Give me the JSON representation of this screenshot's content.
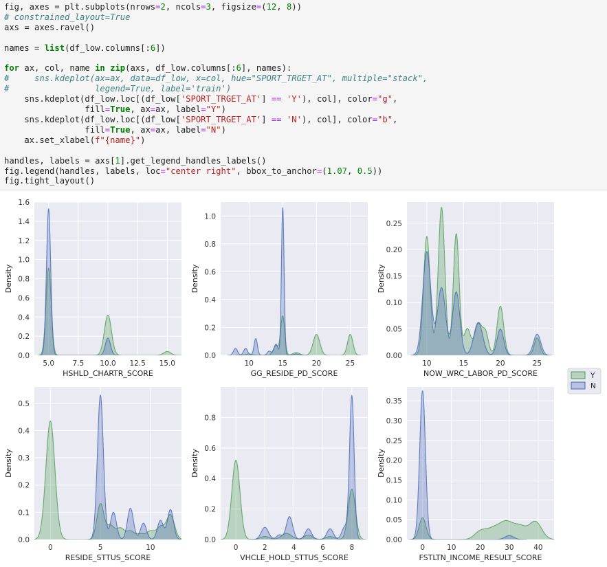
{
  "code_cell": {
    "lines": [
      [
        [
          "plain",
          "fig, axes = plt.subplots(nrows"
        ],
        [
          "op",
          "="
        ],
        [
          "num",
          "2"
        ],
        [
          "plain",
          ", ncols"
        ],
        [
          "op",
          "="
        ],
        [
          "num",
          "3"
        ],
        [
          "plain",
          ", figsize"
        ],
        [
          "op",
          "="
        ],
        [
          "plain",
          "("
        ],
        [
          "num",
          "12"
        ],
        [
          "plain",
          ", "
        ],
        [
          "num",
          "8"
        ],
        [
          "plain",
          "))"
        ]
      ],
      [
        [
          "cmt",
          "# constrained_layout=True"
        ]
      ],
      [
        [
          "plain",
          "axs = axes.ravel()"
        ]
      ],
      [
        [
          "plain",
          ""
        ]
      ],
      [
        [
          "plain",
          "names = "
        ],
        [
          "kw",
          "list"
        ],
        [
          "plain",
          "(df_low.columns[:"
        ],
        [
          "num",
          "6"
        ],
        [
          "plain",
          "])"
        ]
      ],
      [
        [
          "plain",
          ""
        ]
      ],
      [
        [
          "kw",
          "for"
        ],
        [
          "plain",
          " ax, col, name "
        ],
        [
          "kw",
          "in"
        ],
        [
          "plain",
          " "
        ],
        [
          "kw",
          "zip"
        ],
        [
          "plain",
          "(axs, df_low.columns[:"
        ],
        [
          "num",
          "6"
        ],
        [
          "plain",
          "], names):"
        ]
      ],
      [
        [
          "cmt",
          "#     sns.kdeplot(ax=ax, data=df_low, x=col, hue=\"SPORT_TRGET_AT\", multiple=\"stack\","
        ]
      ],
      [
        [
          "cmt",
          "#                 legend=True, label='train')"
        ]
      ],
      [
        [
          "plain",
          "    sns.kdeplot(df_low.loc[(df_low["
        ],
        [
          "str",
          "'SPORT_TRGET_AT'"
        ],
        [
          "plain",
          "] "
        ],
        [
          "op",
          "=="
        ],
        [
          "plain",
          " "
        ],
        [
          "str",
          "'Y'"
        ],
        [
          "plain",
          "), col], color"
        ],
        [
          "op",
          "="
        ],
        [
          "str",
          "\"g\""
        ],
        [
          "plain",
          ","
        ]
      ],
      [
        [
          "plain",
          "                fill"
        ],
        [
          "op",
          "="
        ],
        [
          "kw",
          "True"
        ],
        [
          "plain",
          ", ax"
        ],
        [
          "op",
          "="
        ],
        [
          "plain",
          "ax, label"
        ],
        [
          "op",
          "="
        ],
        [
          "str",
          "\"Y\""
        ],
        [
          "plain",
          ")"
        ]
      ],
      [
        [
          "plain",
          "    sns.kdeplot(df_low.loc[(df_low["
        ],
        [
          "str",
          "'SPORT_TRGET_AT'"
        ],
        [
          "plain",
          "] "
        ],
        [
          "op",
          "=="
        ],
        [
          "plain",
          " "
        ],
        [
          "str",
          "'N'"
        ],
        [
          "plain",
          "), col], color"
        ],
        [
          "op",
          "="
        ],
        [
          "str",
          "\"b\""
        ],
        [
          "plain",
          ","
        ]
      ],
      [
        [
          "plain",
          "                fill"
        ],
        [
          "op",
          "="
        ],
        [
          "kw",
          "True"
        ],
        [
          "plain",
          ", ax"
        ],
        [
          "op",
          "="
        ],
        [
          "plain",
          "ax, label"
        ],
        [
          "op",
          "="
        ],
        [
          "str",
          "\"N\""
        ],
        [
          "plain",
          ")"
        ]
      ],
      [
        [
          "plain",
          "    ax.set_xlabel("
        ],
        [
          "str",
          "f\"{name}\""
        ],
        [
          "plain",
          ")"
        ]
      ],
      [
        [
          "plain",
          ""
        ]
      ],
      [
        [
          "plain",
          "handles, labels = axs["
        ],
        [
          "num",
          "1"
        ],
        [
          "plain",
          "].get_legend_handles_labels()"
        ]
      ],
      [
        [
          "plain",
          "fig.legend(handles, labels, loc"
        ],
        [
          "op",
          "="
        ],
        [
          "str",
          "\"center right\""
        ],
        [
          "plain",
          ", bbox_to_anchor"
        ],
        [
          "op",
          "="
        ],
        [
          "plain",
          "("
        ],
        [
          "num",
          "1.07"
        ],
        [
          "plain",
          ", "
        ],
        [
          "num",
          "0.5"
        ],
        [
          "plain",
          "))"
        ]
      ],
      [
        [
          "plain",
          "fig.tight_layout()"
        ]
      ]
    ]
  },
  "colors": {
    "Y": "#4c9a52",
    "N": "#4465b7",
    "panel_bg": "#eaeaf2",
    "grid": "#ffffff"
  },
  "legend": {
    "entries": [
      "Y",
      "N"
    ]
  },
  "chart_data": [
    {
      "type": "area",
      "xlabel": "HSHLD_CHARTR_SCORE",
      "ylabel": "Density",
      "xlim": [
        3.8,
        16.2
      ],
      "ylim": [
        0,
        1.6
      ],
      "xticks": [
        5.0,
        7.5,
        10.0,
        12.5,
        15.0
      ],
      "xticklabels": [
        "5.0",
        "7.5",
        "10.0",
        "12.5",
        "15.0"
      ],
      "yticks": [
        0,
        0.2,
        0.4,
        0.6,
        0.8,
        1.0,
        1.2,
        1.4,
        1.6
      ],
      "yticklabels": [
        "0.0",
        "0.2",
        "0.4",
        "0.6",
        "0.8",
        "1.0",
        "1.2",
        "1.4",
        "1.6"
      ],
      "series": [
        {
          "name": "Y",
          "peaks": [
            [
              5.0,
              0.91,
              0.22
            ],
            [
              10.0,
              0.42,
              0.3
            ],
            [
              15.0,
              0.04,
              0.3
            ]
          ]
        },
        {
          "name": "N",
          "peaks": [
            [
              5.0,
              1.53,
              0.18
            ],
            [
              10.0,
              0.18,
              0.22
            ]
          ]
        }
      ]
    },
    {
      "type": "area",
      "xlabel": "GG_RESIDE_PD_SCORE",
      "ylabel": "Density",
      "xlim": [
        5.8,
        27.6
      ],
      "ylim": [
        0,
        1.1
      ],
      "xticks": [
        10,
        15,
        20,
        25
      ],
      "xticklabels": [
        "10",
        "15",
        "20",
        "25"
      ],
      "yticks": [
        0,
        0.2,
        0.4,
        0.6,
        0.8,
        1.0
      ],
      "yticklabels": [
        "0.0",
        "0.2",
        "0.4",
        "0.6",
        "0.8",
        "1.0"
      ],
      "series": [
        {
          "name": "Y",
          "peaks": [
            [
              10,
              0.01,
              0.5
            ],
            [
              14,
              0.07,
              0.4
            ],
            [
              15,
              0.28,
              0.3
            ],
            [
              17,
              0.02,
              0.5
            ],
            [
              20,
              0.15,
              0.5
            ],
            [
              25,
              0.15,
              0.4
            ]
          ]
        },
        {
          "name": "N",
          "peaks": [
            [
              8,
              0.05,
              0.3
            ],
            [
              9.5,
              0.05,
              0.3
            ],
            [
              11,
              0.12,
              0.25
            ],
            [
              13,
              0.03,
              0.3
            ],
            [
              14,
              0.08,
              0.3
            ],
            [
              15,
              1.06,
              0.2
            ],
            [
              17,
              0.01,
              0.4
            ]
          ]
        }
      ]
    },
    {
      "type": "area",
      "xlabel": "NOW_WRC_LABOR_PD_SCORE",
      "ylabel": "Density",
      "xlim": [
        7.3,
        27.3
      ],
      "ylim": [
        0,
        0.29
      ],
      "xticks": [
        10,
        15,
        20,
        25
      ],
      "xticklabels": [
        "10",
        "15",
        "20",
        "25"
      ],
      "yticks": [
        0,
        0.05,
        0.1,
        0.15,
        0.2,
        0.25
      ],
      "yticklabels": [
        "0.00",
        "0.05",
        "0.10",
        "0.15",
        "0.20",
        "0.25"
      ],
      "series": [
        {
          "name": "Y",
          "peaks": [
            [
              10,
              0.225,
              0.45
            ],
            [
              12,
              0.28,
              0.45
            ],
            [
              14,
              0.23,
              0.4
            ],
            [
              15.5,
              0.05,
              0.45
            ],
            [
              17,
              0.06,
              0.5
            ],
            [
              18,
              0.04,
              0.4
            ],
            [
              20,
              0.093,
              0.45
            ],
            [
              25,
              0.033,
              0.4
            ]
          ]
        },
        {
          "name": "N",
          "peaks": [
            [
              10,
              0.196,
              0.55
            ],
            [
              12,
              0.128,
              0.55
            ],
            [
              14,
              0.12,
              0.5
            ],
            [
              17,
              0.062,
              0.6
            ],
            [
              20,
              0.05,
              0.45
            ],
            [
              25,
              0.04,
              0.5
            ]
          ]
        }
      ]
    },
    {
      "type": "area",
      "xlabel": "RESIDE_STTUS_SCORE",
      "ylabel": "Density",
      "xlim": [
        -1.6,
        13.1
      ],
      "ylim": [
        0,
        0.56
      ],
      "xticks": [
        0,
        5,
        10
      ],
      "xticklabels": [
        "0",
        "5",
        "10"
      ],
      "yticks": [
        0,
        0.1,
        0.2,
        0.3,
        0.4,
        0.5
      ],
      "yticklabels": [
        "0.0",
        "0.1",
        "0.2",
        "0.3",
        "0.4",
        "0.5"
      ],
      "series": [
        {
          "name": "Y",
          "peaks": [
            [
              0,
              0.435,
              0.45
            ],
            [
              5,
              0.13,
              0.35
            ],
            [
              6,
              0.05,
              0.4
            ],
            [
              7,
              0.04,
              0.4
            ],
            [
              8,
              0.03,
              0.4
            ],
            [
              9,
              0.02,
              0.4
            ],
            [
              10,
              0.03,
              0.4
            ],
            [
              11,
              0.045,
              0.4
            ],
            [
              12,
              0.09,
              0.4
            ]
          ]
        },
        {
          "name": "N",
          "peaks": [
            [
              5,
              0.53,
              0.3
            ],
            [
              6.3,
              0.1,
              0.3
            ],
            [
              8,
              0.115,
              0.3
            ],
            [
              9.3,
              0.06,
              0.3
            ],
            [
              11,
              0.07,
              0.3
            ],
            [
              12,
              0.11,
              0.3
            ]
          ]
        }
      ]
    },
    {
      "type": "area",
      "xlabel": "VHCLE_HOLD_STTUS_SCORE",
      "ylabel": "Density",
      "xlim": [
        -1.05,
        9.1
      ],
      "ylim": [
        0,
        1.0
      ],
      "xticks": [
        0,
        2,
        4,
        6,
        8
      ],
      "xticklabels": [
        "0",
        "2",
        "4",
        "6",
        "8"
      ],
      "yticks": [
        0,
        0.2,
        0.4,
        0.6,
        0.8
      ],
      "yticklabels": [
        "0.0",
        "0.2",
        "0.4",
        "0.6",
        "0.8"
      ],
      "series": [
        {
          "name": "Y",
          "peaks": [
            [
              0,
              0.52,
              0.28
            ],
            [
              2,
              0.02,
              0.3
            ],
            [
              3.5,
              0.04,
              0.35
            ],
            [
              5,
              0.03,
              0.3
            ],
            [
              6.5,
              0.02,
              0.3
            ],
            [
              8,
              0.33,
              0.25
            ]
          ]
        },
        {
          "name": "N",
          "peaks": [
            [
              2,
              0.08,
              0.25
            ],
            [
              3,
              0.03,
              0.2
            ],
            [
              3.7,
              0.15,
              0.22
            ],
            [
              5,
              0.07,
              0.22
            ],
            [
              6.5,
              0.07,
              0.22
            ],
            [
              7.5,
              0.08,
              0.2
            ],
            [
              8,
              0.94,
              0.16
            ]
          ]
        }
      ]
    },
    {
      "type": "area",
      "xlabel": "FSTLTN_INCOME_RESULT_SCORE",
      "ylabel": "Density",
      "xlim": [
        -5.4,
        45.5
      ],
      "ylim": [
        0,
        0.385
      ],
      "xticks": [
        0,
        10,
        20,
        30,
        40
      ],
      "xticklabels": [
        "0",
        "10",
        "20",
        "30",
        "40"
      ],
      "yticks": [
        0,
        0.05,
        0.1,
        0.15,
        0.2,
        0.25,
        0.3,
        0.35
      ],
      "yticklabels": [
        "0.00",
        "0.05",
        "0.10",
        "0.15",
        "0.20",
        "0.25",
        "0.30",
        "0.35"
      ],
      "series": [
        {
          "name": "Y",
          "peaks": [
            [
              0,
              0.055,
              1.2
            ],
            [
              20,
              0.02,
              2.0
            ],
            [
              24,
              0.02,
              2.2
            ],
            [
              29,
              0.045,
              2.8
            ],
            [
              34,
              0.025,
              2.0
            ],
            [
              39,
              0.045,
              2.2
            ]
          ]
        },
        {
          "name": "N",
          "peaks": [
            [
              0,
              0.375,
              1.0
            ],
            [
              30,
              0.01,
              1.5
            ]
          ]
        }
      ]
    }
  ]
}
